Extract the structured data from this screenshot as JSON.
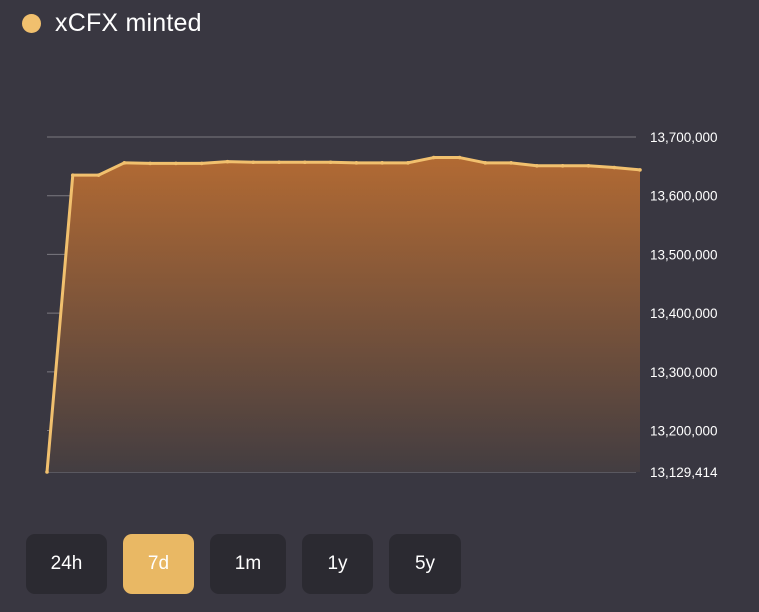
{
  "legend": {
    "label": "xCFX minted",
    "color": "#f1c06e"
  },
  "range_buttons": [
    {
      "label": "24h",
      "active": false
    },
    {
      "label": "7d",
      "active": true
    },
    {
      "label": "1m",
      "active": false
    },
    {
      "label": "1y",
      "active": false
    },
    {
      "label": "5y",
      "active": false
    }
  ],
  "chart_data": {
    "type": "area",
    "title": "",
    "xlabel": "",
    "ylabel": "",
    "series": [
      {
        "name": "xCFX minted",
        "color": "#f1c06e",
        "values": [
          13129414,
          13635000,
          13635000,
          13656000,
          13655000,
          13655000,
          13655000,
          13658000,
          13657000,
          13657000,
          13657000,
          13657000,
          13656000,
          13656000,
          13656000,
          13665000,
          13665000,
          13656000,
          13656000,
          13651000,
          13651000,
          13651000,
          13648000,
          13644000
        ]
      }
    ],
    "ylim": [
      13129414,
      13700000
    ],
    "y_ticks": [
      {
        "value": 13700000,
        "label": "13,700,000"
      },
      {
        "value": 13600000,
        "label": "13,600,000"
      },
      {
        "value": 13500000,
        "label": "13,500,000"
      },
      {
        "value": 13400000,
        "label": "13,400,000"
      },
      {
        "value": 13300000,
        "label": "13,300,000"
      },
      {
        "value": 13200000,
        "label": "13,200,000"
      },
      {
        "value": 13129414,
        "label": "13,129,414"
      }
    ],
    "y_axis_position": "right",
    "grid": true,
    "legend_position": "top-left",
    "fill_top_color": "#b26a33",
    "fill_bottom_color": "#433d41",
    "grid_color": "#7b7880"
  }
}
